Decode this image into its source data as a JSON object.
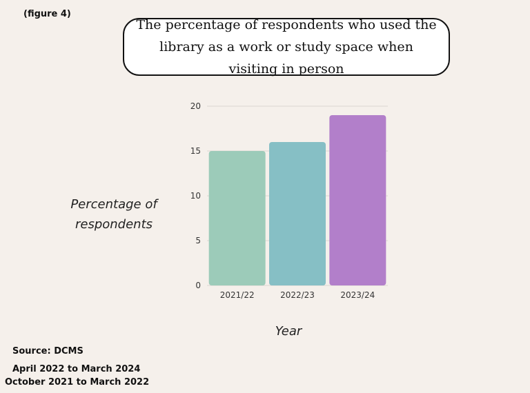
{
  "figure_label": "(figure 4)",
  "source": "Source: DCMS",
  "period_1": "April 2022 to March 2024",
  "period_2": "October 2021 to March 2022",
  "chart_data": {
    "type": "bar",
    "title": "The percentage of respondents who used the library as a work or study space when visiting in person",
    "xlabel": "Year",
    "ylabel": "Percentage of respondents",
    "categories": [
      "2021/22",
      "2022/23",
      "2023/24"
    ],
    "values": [
      15,
      16,
      19
    ],
    "colors": [
      "#9ccbb9",
      "#86bfc5",
      "#b27fca"
    ],
    "ylim": [
      0,
      20
    ],
    "yticks": [
      0,
      5,
      10,
      15,
      20
    ],
    "grid": true,
    "legend": "none"
  }
}
